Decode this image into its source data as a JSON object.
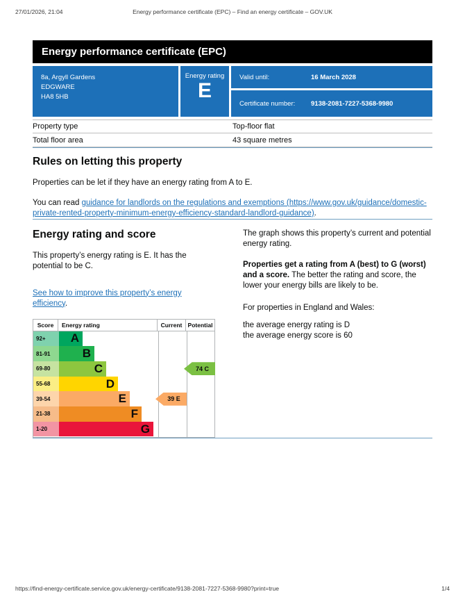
{
  "print_header": {
    "datetime": "27/01/2026, 21:04",
    "title": "Energy performance certificate (EPC) – Find an energy certificate – GOV.UK"
  },
  "banner": {
    "title": "Energy performance certificate (EPC)"
  },
  "summary": {
    "panel_color": "#1d70b8",
    "address_lines": [
      "8a, Argyll Gardens",
      "EDGWARE",
      "HA8 5HB"
    ],
    "rating_label": "Energy rating",
    "rating_value": "E",
    "valid_until_label": "Valid until:",
    "valid_until_value": "16 March 2028",
    "certificate_number_label": "Certificate number:",
    "certificate_number_value": "9138-2081-7227-5368-9980"
  },
  "property_facts": {
    "rows": [
      {
        "label": "Property type",
        "value": "Top-floor flat"
      },
      {
        "label": "Total floor area",
        "value": "43 square metres"
      }
    ]
  },
  "rules_section": {
    "heading": "Rules on letting this property",
    "paragraph": "Properties can be let if they have an energy rating from A to E.",
    "read_prefix": "You can read ",
    "link_text": "guidance for landlords on the regulations and exemptions (https://www.gov.uk/guidance/domestic-private-rented-property-minimum-energy-efficiency-standard-landlord-guidance)",
    "read_suffix": "."
  },
  "rating_section": {
    "heading": "Energy rating and score",
    "paragraph": "This property’s energy rating is E. It has the potential to be C.",
    "improve_link_text": "See how to improve this property’s energy efficiency",
    "improve_suffix": ".",
    "right": {
      "p1": "The graph shows this property’s current and potential energy rating.",
      "p2_bold": "Properties get a rating from A (best) to G (worst) and a score.",
      "p2_rest": " The better the rating and score, the lower your energy bills are likely to be.",
      "p3": "For properties in England and Wales:",
      "p4_line1": "the average energy rating is D",
      "p4_line2": "the average energy score is 60"
    }
  },
  "chart_data": {
    "type": "bar",
    "title": "Energy rating and score chart",
    "columns": [
      "Score",
      "Energy rating",
      "Current",
      "Potential"
    ],
    "bands": [
      {
        "letter": "A",
        "score_range": "92+",
        "color": "#00a65e",
        "tint_color": "#7fd2ae"
      },
      {
        "letter": "B",
        "score_range": "81-91",
        "color": "#1fb14e",
        "tint_color": "#8fd890"
      },
      {
        "letter": "C",
        "score_range": "69-80",
        "color": "#8dc63f",
        "tint_color": "#c6e3a1"
      },
      {
        "letter": "D",
        "score_range": "55-68",
        "color": "#ffd500",
        "tint_color": "#fbee85"
      },
      {
        "letter": "E",
        "score_range": "39-54",
        "color": "#fbaa65",
        "tint_color": "#fdd5ab"
      },
      {
        "letter": "F",
        "score_range": "21-38",
        "color": "#ef8c23",
        "tint_color": "#f6bc8a"
      },
      {
        "letter": "G",
        "score_range": "1-20",
        "color": "#e9153b",
        "tint_color": "#f294a3"
      }
    ],
    "current": {
      "score": 39,
      "rating": "E",
      "label": "39 E",
      "color": "#fbaa65"
    },
    "potential": {
      "score": 74,
      "rating": "C",
      "label": "74 C",
      "color": "#7bc043"
    }
  },
  "print_footer": {
    "url": "https://find-energy-certificate.service.gov.uk/energy-certificate/9138-2081-7227-5368-9980?print=true",
    "page": "1/4"
  }
}
